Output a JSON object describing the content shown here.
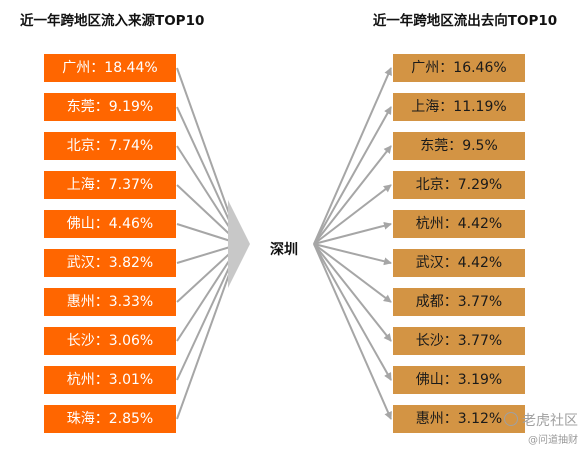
{
  "titles": {
    "left": "近一年跨地区流入来源TOP10",
    "right": "近一年跨地区流出去向TOP10"
  },
  "center": "深圳",
  "inflow": [
    {
      "text": "广州：18.44%"
    },
    {
      "text": "东莞：9.19%"
    },
    {
      "text": "北京：7.74%"
    },
    {
      "text": "上海：7.37%"
    },
    {
      "text": "佛山：4.46%"
    },
    {
      "text": "武汉：3.82%"
    },
    {
      "text": "惠州：3.33%"
    },
    {
      "text": "长沙：3.06%"
    },
    {
      "text": "杭州：3.01%"
    },
    {
      "text": "珠海：2.85%"
    }
  ],
  "outflow": [
    {
      "text": "广州：16.46%"
    },
    {
      "text": "上海：11.19%"
    },
    {
      "text": "东莞：9.5%"
    },
    {
      "text": "北京：7.29%"
    },
    {
      "text": "杭州：4.42%"
    },
    {
      "text": "武汉：4.42%"
    },
    {
      "text": "成都：3.77%"
    },
    {
      "text": "长沙：3.77%"
    },
    {
      "text": "佛山：3.19%"
    },
    {
      "text": "惠州：3.12%"
    }
  ],
  "watermark": {
    "main": "老虎社区",
    "sub": "@问道抽财"
  },
  "colors": {
    "inflow_box": "#ff6600",
    "outflow_box": "#d39444",
    "lines": "#a6a6a6"
  }
}
